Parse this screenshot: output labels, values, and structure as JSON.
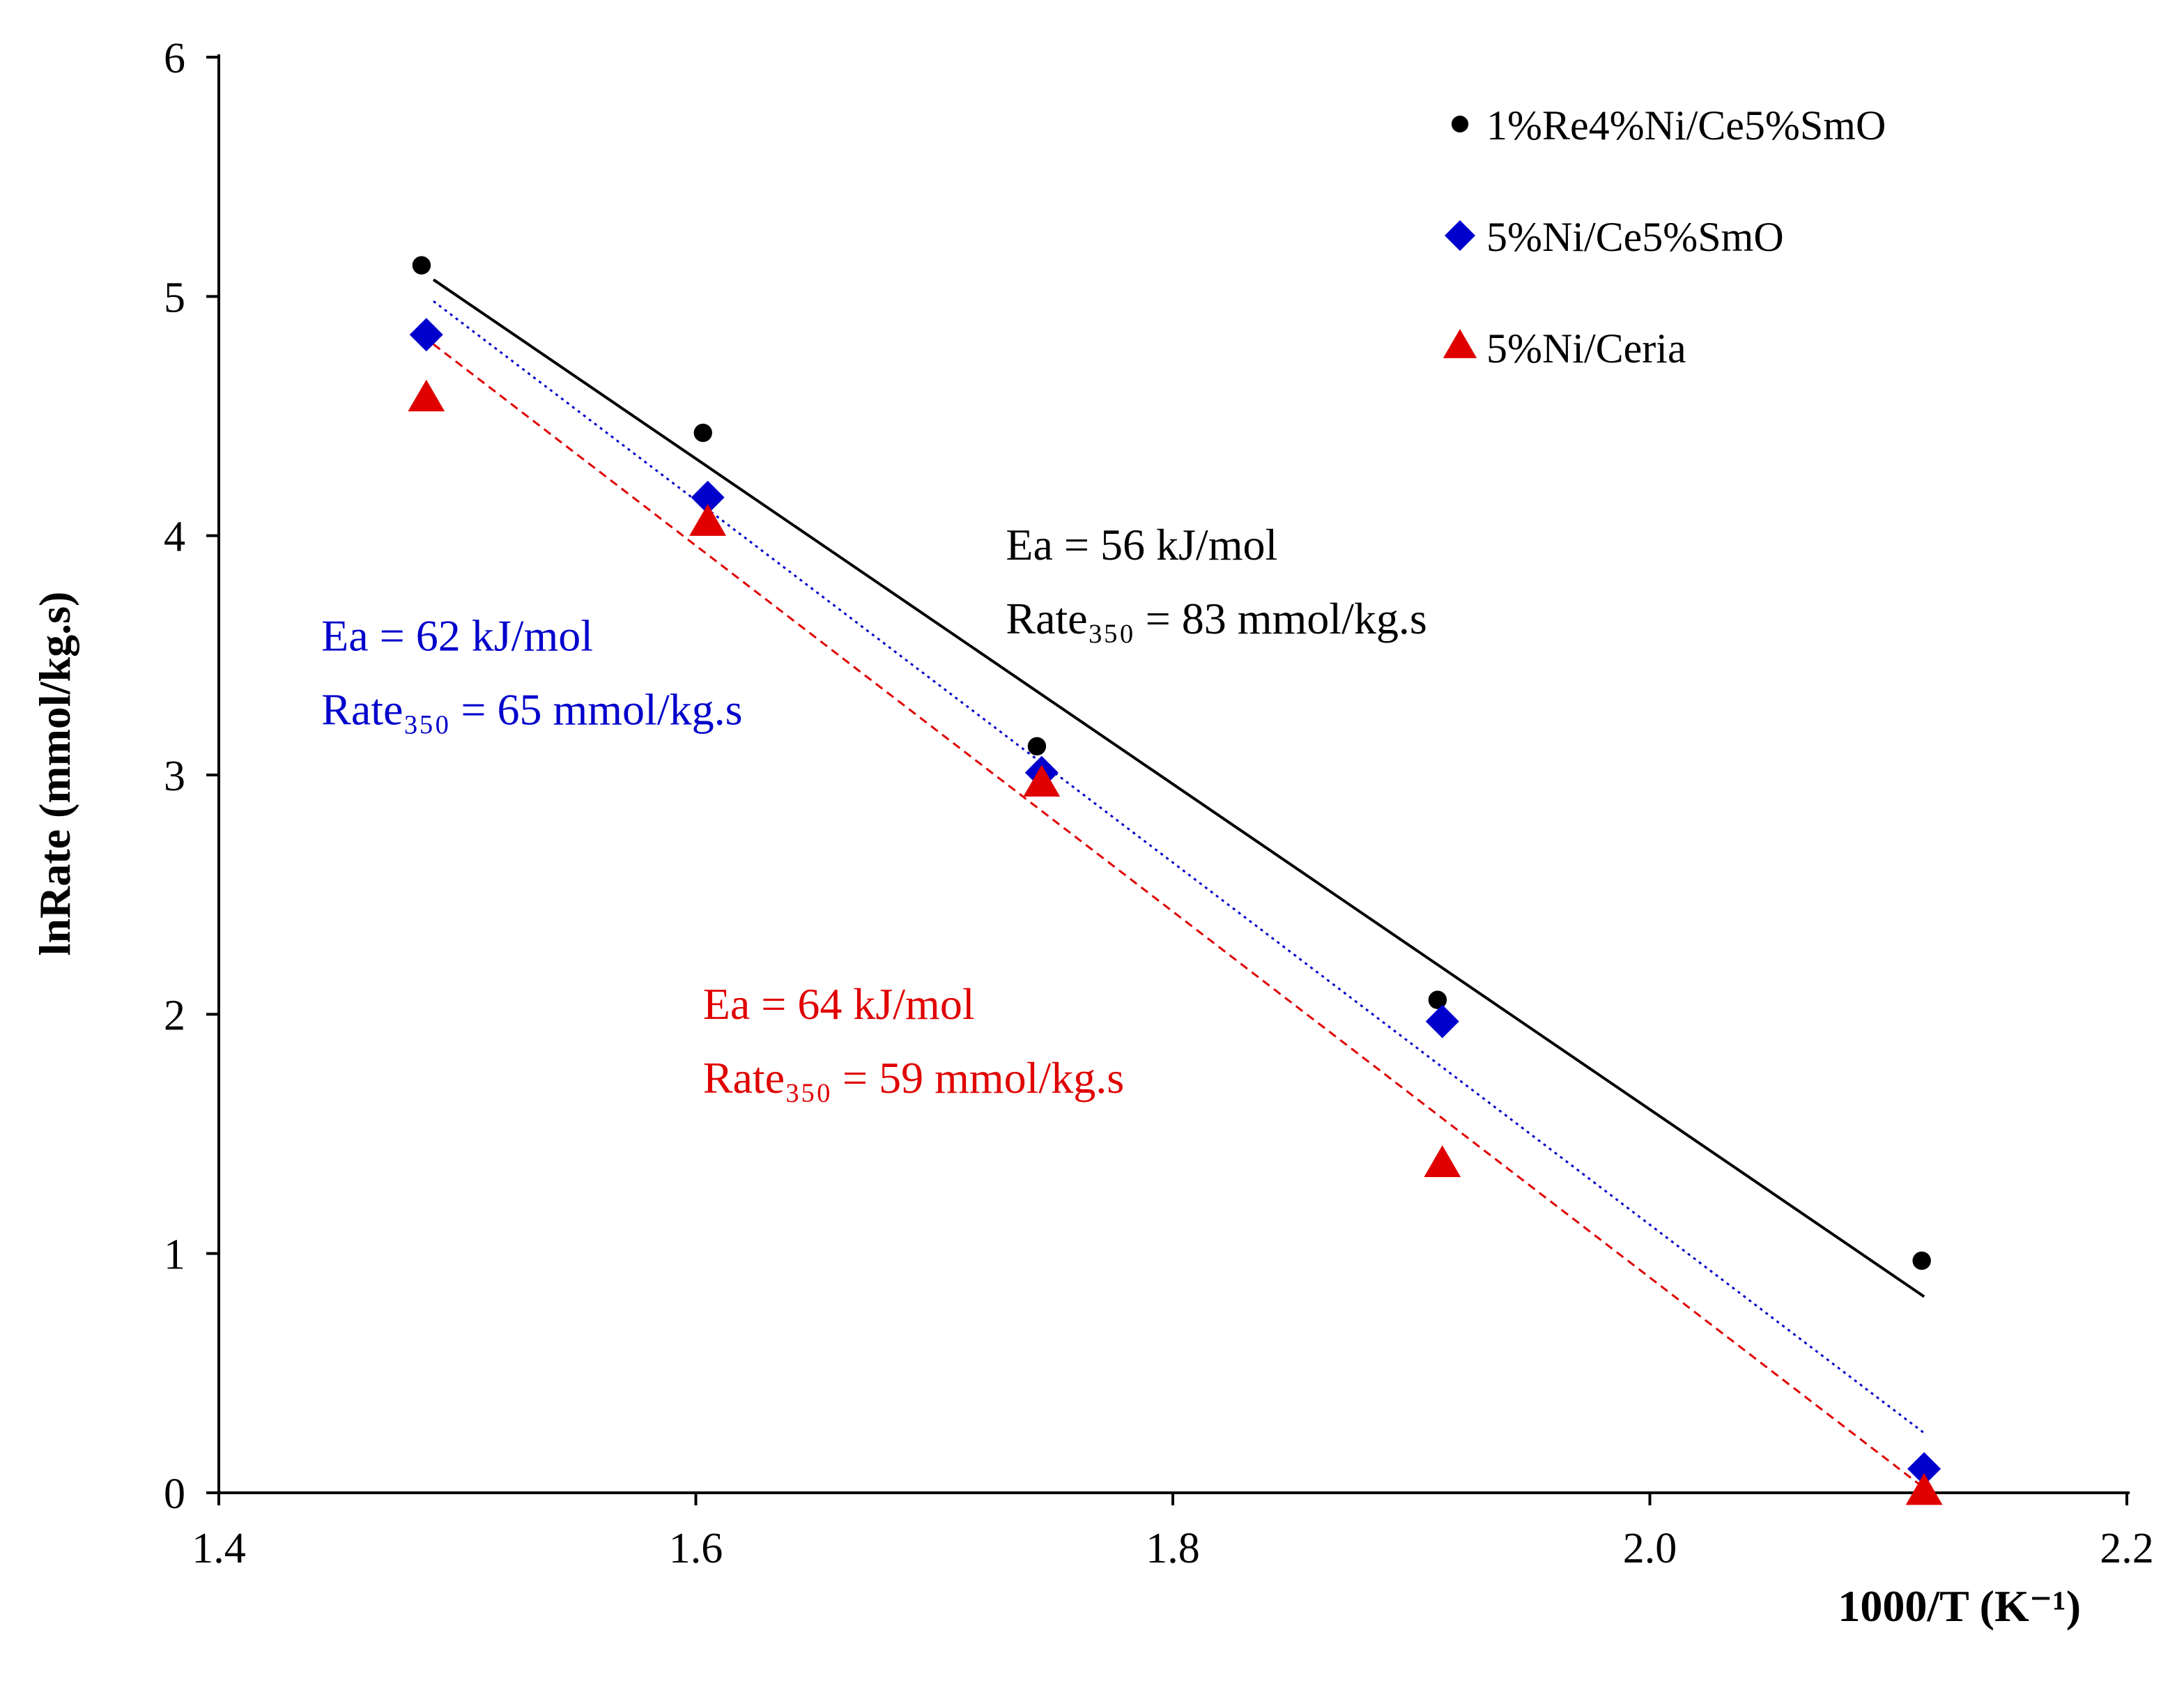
{
  "chart_data": {
    "type": "scatter",
    "title": "",
    "xlabel": "1000/T (K⁻¹)",
    "ylabel": "lnRate (mmol/kg.s)",
    "xlim": [
      1.4,
      2.2
    ],
    "ylim": [
      0,
      6
    ],
    "xticks": [
      "1.4",
      "1.6",
      "1.8",
      "2.0",
      "2.2"
    ],
    "yticks": [
      "0",
      "1",
      "2",
      "3",
      "4",
      "5",
      "6"
    ],
    "grid": false,
    "legend_position": "top-right",
    "series": [
      {
        "name": "1%Re4%Ni/Ce5%SmO",
        "marker": "circle",
        "color": "#000000",
        "line_style": "solid",
        "x": [
          1.485,
          1.603,
          1.743,
          1.911,
          2.114
        ],
        "y": [
          5.13,
          4.43,
          3.12,
          2.06,
          0.97
        ],
        "fit": [
          [
            1.49,
            5.07
          ],
          [
            2.115,
            0.82
          ]
        ]
      },
      {
        "name": "5%Ni/Ce5%SmO",
        "marker": "diamond",
        "color": "#0000cc",
        "line_style": "dotted",
        "x": [
          1.487,
          1.605,
          1.745,
          1.913,
          2.115
        ],
        "y": [
          4.84,
          4.16,
          3.01,
          1.97,
          0.1
        ],
        "fit": [
          [
            1.49,
            4.98
          ],
          [
            2.115,
            0.25
          ]
        ]
      },
      {
        "name": "5%Ni/Ceria",
        "marker": "triangle",
        "color": "#e00000",
        "line_style": "dashed",
        "x": [
          1.487,
          1.605,
          1.745,
          1.913,
          2.115
        ],
        "y": [
          4.57,
          4.05,
          2.96,
          1.37,
          0.0
        ],
        "fit": [
          [
            1.49,
            4.8
          ],
          [
            2.115,
            0.02
          ]
        ]
      }
    ],
    "annotations": [
      {
        "lines": [
          "Ea = 56 kJ/mol",
          "Rate₃₅₀ = 83 mmol/kg.s"
        ],
        "color": "#000000",
        "x": 1.73,
        "y": 3.9
      },
      {
        "lines": [
          "Ea = 62 kJ/mol",
          "Rate₃₅₀ = 65 mmol/kg.s"
        ],
        "color": "#0000cc",
        "x": 1.443,
        "y": 3.52
      },
      {
        "lines": [
          "Ea = 64 kJ/mol",
          "Rate₃₅₀ = 59 mmol/kg.s"
        ],
        "color": "#e00000",
        "x": 1.603,
        "y": 1.98
      }
    ]
  }
}
